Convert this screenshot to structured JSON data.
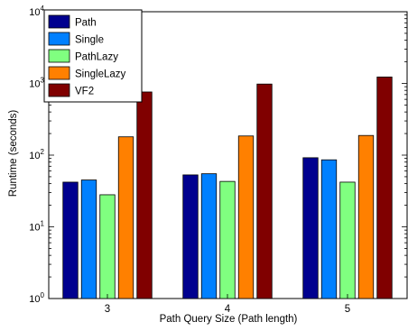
{
  "chart_data": {
    "type": "bar",
    "title": "",
    "xlabel": "Path Query Size (Path length)",
    "ylabel": "Runtime (seconds)",
    "yscale": "log",
    "ylim": [
      1,
      10000
    ],
    "y_ticks": [
      {
        "base": "10",
        "exp": "0"
      },
      {
        "base": "10",
        "exp": "1"
      },
      {
        "base": "10",
        "exp": "2"
      },
      {
        "base": "10",
        "exp": "3"
      },
      {
        "base": "10",
        "exp": "4"
      }
    ],
    "categories": [
      "3",
      "4",
      "5"
    ],
    "series": [
      {
        "name": "Path",
        "color": "#00008f",
        "values": [
          42,
          53,
          92
        ]
      },
      {
        "name": "Single",
        "color": "#0080ff",
        "values": [
          45,
          55,
          86
        ]
      },
      {
        "name": "PathLazy",
        "color": "#80ff80",
        "values": [
          28,
          43,
          42
        ]
      },
      {
        "name": "SingleLazy",
        "color": "#ff8000",
        "values": [
          180,
          185,
          188
        ]
      },
      {
        "name": "VF2",
        "color": "#800000",
        "values": [
          760,
          980,
          1230
        ]
      }
    ],
    "legend_position": "top-left",
    "grid": false
  }
}
